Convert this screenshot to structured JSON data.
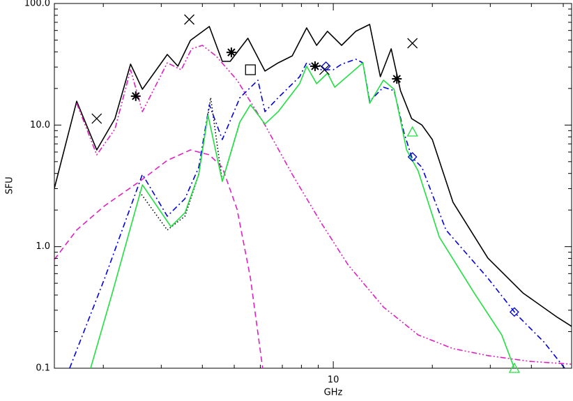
{
  "chart_data": {
    "type": "line",
    "xlabel": "GHz",
    "ylabel": "SFU",
    "xlog": true,
    "ylog": true,
    "xlim": [
      1.42,
      53
    ],
    "ylim": [
      0.1,
      100
    ],
    "xticks": [
      10
    ],
    "xminorticks": [
      2,
      3,
      4,
      5,
      6,
      7,
      8,
      9,
      20,
      30,
      40,
      50
    ],
    "yticks": [
      0.1,
      {
        "value": 1,
        "label": "1.0"
      },
      {
        "value": 10,
        "label": "10.0"
      },
      {
        "value": 100,
        "label": "100.0"
      }
    ],
    "yminorticks": [
      0.2,
      0.3,
      0.4,
      0.5,
      0.6,
      0.7,
      0.8,
      0.9,
      2,
      3,
      4,
      5,
      6,
      7,
      8,
      9,
      20,
      30,
      40,
      50,
      60,
      70,
      80,
      90
    ],
    "series": [
      {
        "color": "#000000",
        "style": "solid",
        "x": [
          1.42,
          1.66,
          1.91,
          2.17,
          2.42,
          2.63,
          3.13,
          3.37,
          3.68,
          4.2,
          4.6,
          4.86,
          5.5,
          6.2,
          6.8,
          7.5,
          8.3,
          8.9,
          9.6,
          10.6,
          11.7,
          12.9,
          13.9,
          15.0,
          16.0,
          17.3,
          18.6,
          20,
          23.1,
          29.5,
          37.7,
          48,
          53
        ],
        "values": [
          3.02,
          15.7,
          6.24,
          11.3,
          31.7,
          19.7,
          38.1,
          30.5,
          49.7,
          64.7,
          33.4,
          33.4,
          51.7,
          27.8,
          32.5,
          37.1,
          63,
          45.3,
          59,
          45.3,
          59,
          67.3,
          25,
          42.4,
          19.2,
          11.3,
          10,
          7.6,
          2.32,
          0.805,
          0.416,
          0.262,
          0.221
        ]
      },
      {
        "color": "#e020c0",
        "style": "dashdotdot",
        "x": [
          1.66,
          1.91,
          2.17,
          2.42,
          2.63,
          3.13,
          3.45,
          3.71,
          4.0,
          4.4,
          5.1,
          6.2,
          7.5,
          9.2,
          11.1,
          14.2,
          18.1,
          23.1,
          29.5,
          39.5,
          53
        ],
        "values": [
          15.1,
          5.69,
          9.27,
          28.5,
          12.9,
          32.5,
          28.5,
          42.4,
          45.3,
          37.1,
          23.4,
          10,
          3.93,
          1.56,
          0.706,
          0.319,
          0.188,
          0.145,
          0.127,
          0.114,
          0.108
        ]
      },
      {
        "color": "#e020c0",
        "style": "dashed",
        "x": [
          1.42,
          1.66,
          2.02,
          2.58,
          3.13,
          3.68,
          4.2,
          4.6,
          5.1,
          5.6,
          6.1
        ],
        "values": [
          0.784,
          1.37,
          2.17,
          3.44,
          5.12,
          6.24,
          5.69,
          4.49,
          2.03,
          0.55,
          0.1
        ]
      },
      {
        "color": "#000000",
        "style": "dotted",
        "x": [
          2.58,
          3.13,
          3.54,
          3.9,
          4.24,
          4.6,
          5.2
        ],
        "values": [
          2.82,
          1.37,
          1.78,
          3.93,
          16.8,
          3.44,
          10.6
        ]
      },
      {
        "color": "#0000e0",
        "style": "dashdot",
        "x": [
          1.58,
          2.02,
          2.63,
          3.13,
          3.54,
          3.9,
          4.2,
          4.6,
          5.2,
          5.9,
          6.2,
          6.8,
          7.9,
          8.3,
          9.2,
          10,
          10.6,
          11.7,
          12.3,
          12.9,
          14.2,
          15.3,
          16.4,
          17.3,
          18.6,
          22,
          29.5,
          35.9,
          43.6,
          50.5
        ],
        "values": [
          0.1,
          0.55,
          3.93,
          1.78,
          2.48,
          4.49,
          14.7,
          7.6,
          16.8,
          23.4,
          12.9,
          16.8,
          25,
          32.5,
          28.5,
          28.5,
          31.7,
          34.8,
          32.5,
          15.7,
          20.5,
          19.2,
          8.68,
          5.47,
          4.49,
          1.37,
          0.55,
          0.28,
          0.165,
          0.1
        ]
      },
      {
        "color": "#20e040",
        "style": "solid",
        "x": [
          1.83,
          2.13,
          2.63,
          3.21,
          3.54,
          3.9,
          4.16,
          4.6,
          5.2,
          5.6,
          6.2,
          6.8,
          7.9,
          8.3,
          8.9,
          9.6,
          10.1,
          12.3,
          12.9,
          14.2,
          15.3,
          16.7,
          18.1,
          21,
          26.8,
          32.5,
          35.5
        ],
        "values": [
          0.1,
          0.416,
          3.22,
          1.46,
          1.9,
          3.93,
          12.1,
          3.44,
          10.6,
          14.7,
          10.2,
          12.9,
          21.9,
          30.5,
          21.9,
          26.7,
          20.5,
          32.5,
          15.1,
          23.4,
          19.7,
          6.24,
          4.2,
          1.2,
          0.416,
          0.188,
          0.1
        ]
      },
      {
        "color": "#000000",
        "marker": "x",
        "x": [
          1.91,
          3.65,
          9.4,
          17.4
        ],
        "values": [
          11.3,
          73.8,
          28.5,
          47.1
        ]
      },
      {
        "color": "#000000",
        "marker": "asterisk",
        "x": [
          2.51,
          4.9,
          8.8,
          15.6
        ],
        "values": [
          17.3,
          39.6,
          30.5,
          24
        ]
      },
      {
        "color": "#000000",
        "marker": "square",
        "x": [
          5.6
        ],
        "values": [
          28.5
        ]
      },
      {
        "color": "#0000e0",
        "marker": "diamond",
        "x": [
          9.5,
          17.4,
          35.5
        ],
        "values": [
          30.5,
          5.47,
          0.29
        ]
      },
      {
        "color": "#20e040",
        "marker": "triangle",
        "x": [
          17.4,
          35.5
        ],
        "values": [
          8.8,
          0.1
        ]
      }
    ]
  }
}
